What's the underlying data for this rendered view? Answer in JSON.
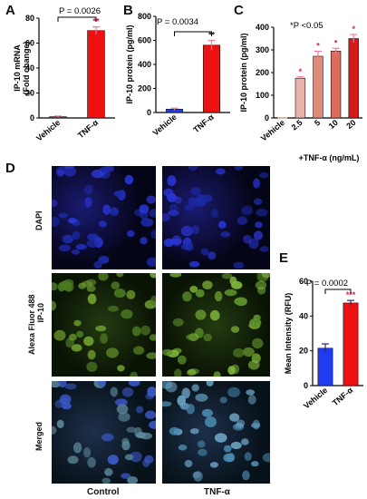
{
  "panel_letters": {
    "A": "A",
    "B": "B",
    "C": "C",
    "D": "D",
    "E": "E"
  },
  "colors": {
    "red": "#ee1111",
    "blue": "#1f3cf0",
    "light1": "#e9b3aa",
    "light2": "#e08c7a",
    "light3": "#dd6c5a",
    "dark_red": "#d61a1a",
    "sig": "#d6205e"
  },
  "chart_data": [
    {
      "panel": "A",
      "type": "bar",
      "categories": [
        "Vehicle",
        "TNF-α"
      ],
      "values": [
        1,
        70
      ],
      "errors": [
        0.5,
        3
      ],
      "ylabel": "IP-10 mRNA\n(Fold change)",
      "ylabel_lines": [
        "IP-10 mRNA",
        "(Fold change)"
      ],
      "ylim": [
        0,
        80
      ],
      "yticks": [
        "0",
        "20",
        "40",
        "60",
        "80"
      ],
      "annotation": "P = 0.0026",
      "sig_mark": "**"
    },
    {
      "panel": "B",
      "type": "bar",
      "categories": [
        "Vehicle",
        "TNF-α"
      ],
      "values": [
        28,
        560
      ],
      "errors": [
        8,
        40
      ],
      "ylabel": "IP-10 protein (pg/ml)",
      "ylim": [
        0,
        800
      ],
      "yticks": [
        "0",
        "200",
        "400",
        "600",
        "800"
      ],
      "annotation": "P = 0.0034",
      "sig_mark": "**"
    },
    {
      "panel": "C",
      "type": "bar",
      "categories": [
        "Vehicle",
        "2.5",
        "5",
        "10",
        "20"
      ],
      "values": [
        0,
        175,
        272,
        295,
        350
      ],
      "errors": [
        0,
        6,
        22,
        12,
        18
      ],
      "ylabel": "IP-10 protein (pg/ml)",
      "xlabel": "+TNF-α (ng/mL)",
      "ylim": [
        0,
        400
      ],
      "yticks": [
        "0",
        "100",
        "200",
        "300",
        "400"
      ],
      "annotation": "*P <0.05",
      "sig_mark": "*"
    },
    {
      "panel": "E",
      "type": "bar",
      "categories": [
        "Vehicle",
        "TNF-α"
      ],
      "values": [
        21.5,
        47.5
      ],
      "errors": [
        2.5,
        1.5
      ],
      "ylabel": "Mean Intensity  (RFU)",
      "ylim": [
        0,
        60
      ],
      "yticks": [
        "0",
        "20",
        "40",
        "60"
      ],
      "annotation": "P = 0.0002",
      "sig_mark": "***"
    }
  ],
  "panel_d": {
    "rows": [
      "DAPI",
      "Alexa Fluor 488\nIP-10",
      "Merged"
    ],
    "row1": "DAPI",
    "row2_line1": "Alexa Fluor 488",
    "row2_line2": "IP-10",
    "row3": "Merged",
    "cols": [
      "Control",
      "TNF-α"
    ]
  }
}
